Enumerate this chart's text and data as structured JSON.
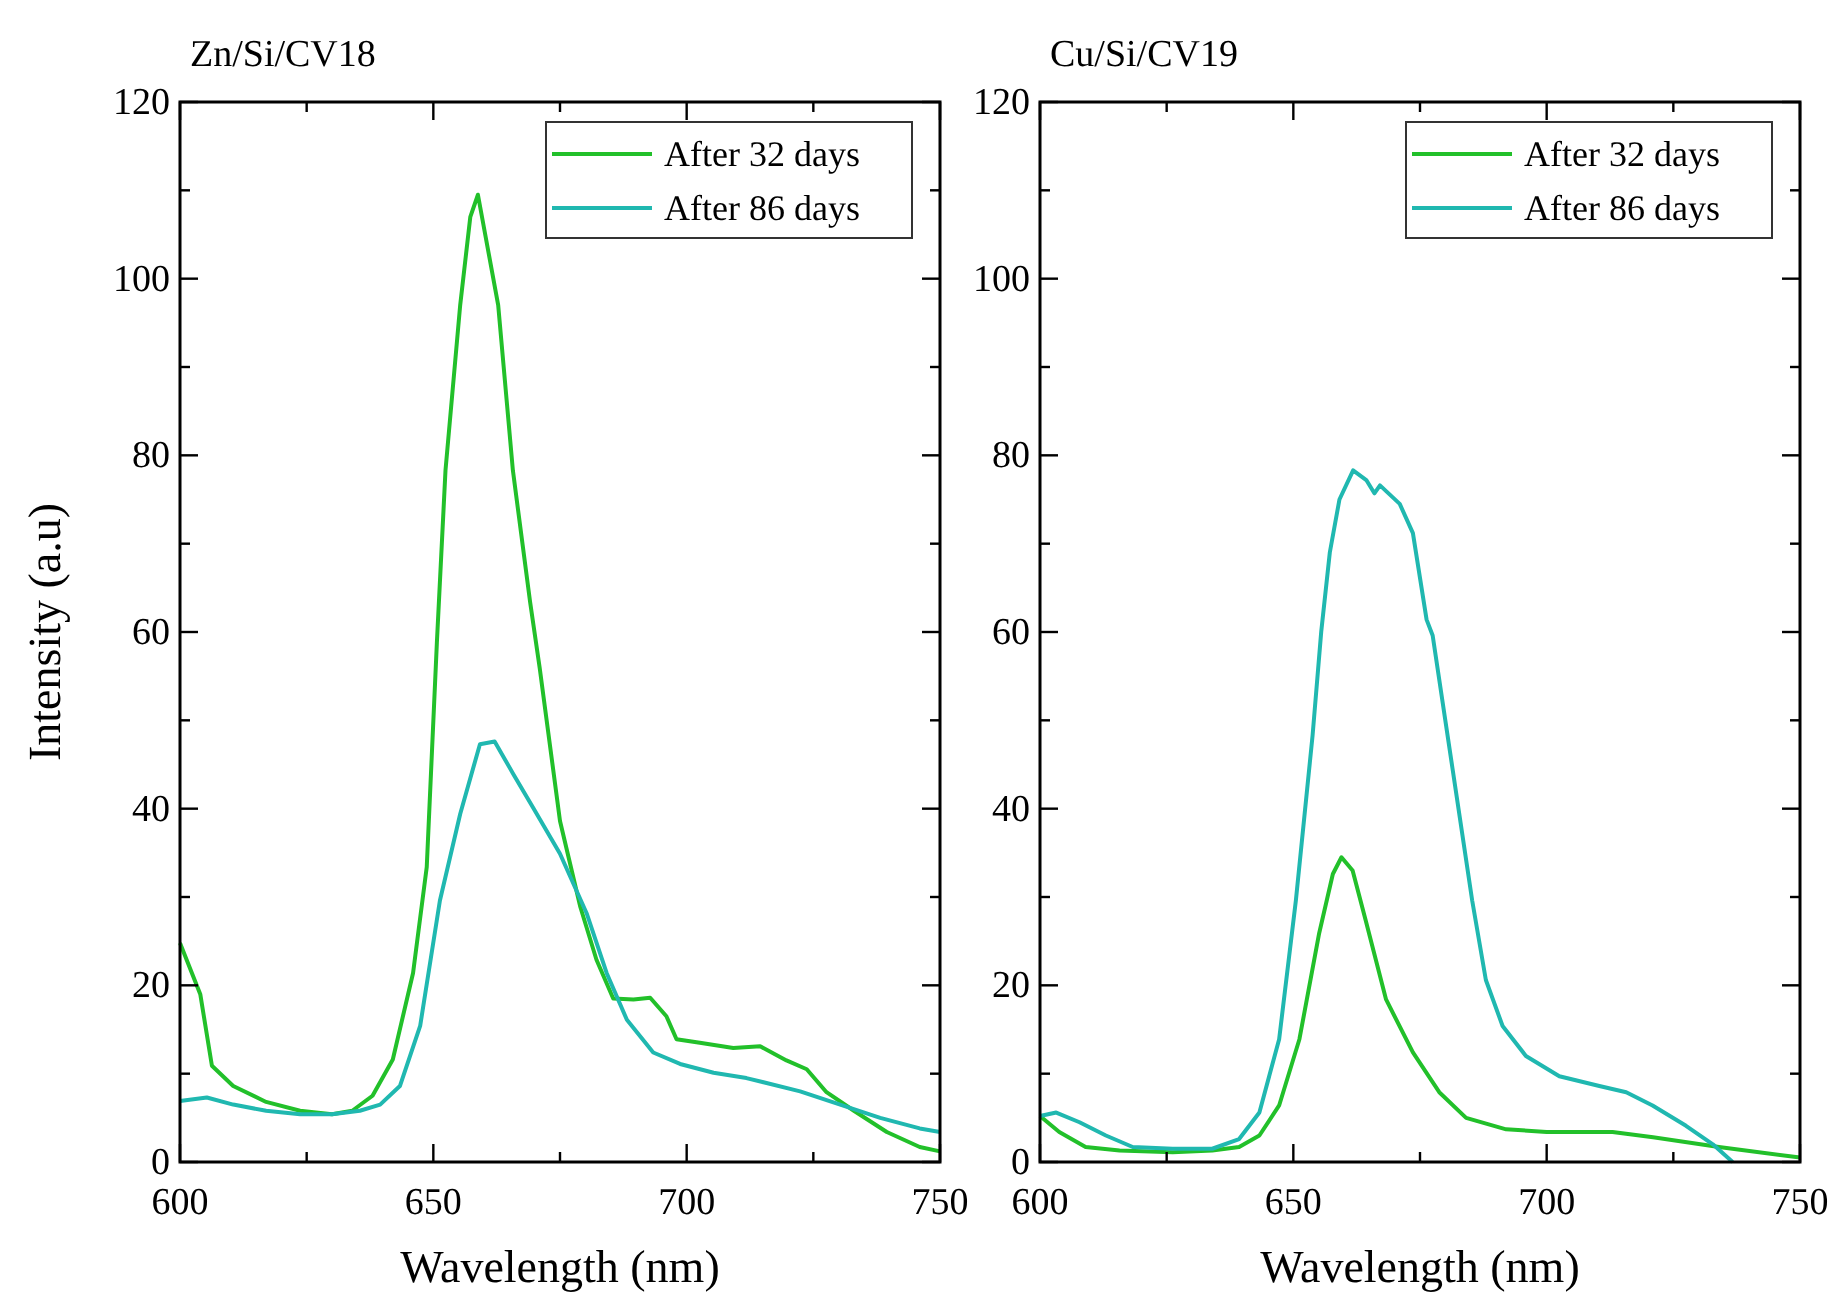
{
  "chart_data": [
    {
      "type": "line",
      "title": "Zn/Si/CV18",
      "xlabel": "Wavelength (nm)",
      "ylabel": "Intensity (a.u)",
      "xlim": [
        600,
        750
      ],
      "ylim": [
        0,
        120
      ],
      "xticks": [
        600,
        {
          "value": 625,
          "label": null
        },
        650,
        {
          "value": 675,
          "label": null
        },
        700,
        {
          "value": 725,
          "label": null
        },
        750
      ],
      "yticks": [
        0,
        {
          "value": 10,
          "label": null
        },
        20,
        {
          "value": 30,
          "label": null
        },
        40,
        {
          "value": 50,
          "label": null
        },
        60,
        {
          "value": 70,
          "label": null
        },
        80,
        {
          "value": 90,
          "label": null
        },
        100,
        {
          "value": 110,
          "label": null
        },
        120
      ],
      "grid": false,
      "legend": "top right",
      "marker": "none",
      "line_style": "solid",
      "series": [
        {
          "name": "After 32 days",
          "color": "#22c02a",
          "x": [
            600,
            604,
            606.3,
            610.5,
            617,
            623.7,
            630,
            634,
            638,
            642,
            646,
            648.7,
            650.7,
            652.4,
            655.3,
            657.3,
            658.8,
            662.8,
            665.7,
            669.1,
            671,
            675,
            679,
            682.2,
            685.5,
            689.5,
            692.8,
            696,
            698,
            702.6,
            709.2,
            714.5,
            719.7,
            723.7,
            727.6,
            733,
            739.5,
            746,
            750
          ],
          "values": [
            24.8,
            19,
            10.9,
            8.6,
            6.8,
            5.8,
            5.4,
            5.8,
            7.5,
            11.6,
            21.4,
            33.4,
            58.8,
            78.3,
            97,
            107,
            109.5,
            97,
            78.3,
            63.4,
            55.9,
            38.6,
            28.9,
            22.9,
            18.5,
            18.4,
            18.6,
            16.5,
            13.9,
            13.5,
            12.9,
            13.1,
            11.5,
            10.5,
            7.9,
            5.8,
            3.4,
            1.7,
            1.2
          ]
        },
        {
          "name": "After 86 days",
          "color": "#20b8b0",
          "x": [
            600,
            605.3,
            610.5,
            617,
            623.7,
            630,
            635.5,
            639.5,
            643.4,
            647.4,
            651.3,
            655.3,
            659.2,
            662.1,
            665.8,
            669.7,
            675,
            680.3,
            684.2,
            688.2,
            693.4,
            698.7,
            705.3,
            711.8,
            722.4,
            730.3,
            738.2,
            746,
            750
          ],
          "values": [
            6.9,
            7.3,
            6.5,
            5.8,
            5.4,
            5.4,
            5.8,
            6.5,
            8.6,
            15.4,
            29.6,
            39.4,
            47.3,
            47.6,
            43.9,
            40.1,
            34.9,
            28.1,
            21.4,
            16.1,
            12.4,
            11.1,
            10.1,
            9.5,
            8,
            6.5,
            5,
            3.8,
            3.4
          ]
        }
      ]
    },
    {
      "type": "line",
      "title": "Cu/Si/CV19",
      "xlabel": "Wavelength (nm)",
      "xlim": [
        600,
        750
      ],
      "ylim": [
        0,
        120
      ],
      "xticks": [
        600,
        {
          "value": 625,
          "label": null
        },
        650,
        {
          "value": 675,
          "label": null
        },
        700,
        {
          "value": 725,
          "label": null
        },
        750
      ],
      "yticks": [
        0,
        {
          "value": 10,
          "label": null
        },
        20,
        {
          "value": 30,
          "label": null
        },
        40,
        {
          "value": 50,
          "label": null
        },
        60,
        {
          "value": 70,
          "label": null
        },
        80,
        {
          "value": 90,
          "label": null
        },
        100,
        {
          "value": 110,
          "label": null
        },
        120
      ],
      "grid": false,
      "legend": "top right",
      "marker": "none",
      "line_style": "solid",
      "series": [
        {
          "name": "After 32 days",
          "color": "#22c02a",
          "x": [
            600,
            603.8,
            609,
            615.7,
            626.2,
            634,
            639.3,
            643.3,
            647.2,
            651.2,
            655.1,
            657.8,
            659.5,
            661.7,
            664.3,
            668.3,
            673.6,
            678.8,
            684.1,
            692,
            700,
            713,
            721,
            734,
            750
          ],
          "values": [
            5.2,
            3.4,
            1.7,
            1.3,
            1.1,
            1.3,
            1.7,
            3,
            6.4,
            13.9,
            25.9,
            32.6,
            34.5,
            33,
            27.3,
            18.4,
            12.4,
            7.9,
            5,
            3.7,
            3.4,
            3.4,
            2.8,
            1.7,
            0.5
          ]
        },
        {
          "name": "After 86 days",
          "color": "#20b8b0",
          "x": [
            600,
            603.2,
            607.8,
            613,
            618.3,
            626.2,
            634,
            639.3,
            643.3,
            647.2,
            650.5,
            653.8,
            655.5,
            657.2,
            659.1,
            661.8,
            664.4,
            666,
            667.1,
            671,
            673.6,
            676.3,
            677.5,
            681.4,
            685.3,
            688,
            691.3,
            695.9,
            702.5,
            710.4,
            715.7,
            720.9,
            727.5,
            732.8,
            736.7
          ],
          "values": [
            5.2,
            5.6,
            4.5,
            3,
            1.7,
            1.5,
            1.5,
            2.6,
            5.6,
            13.9,
            29.6,
            48.3,
            60,
            69,
            75,
            78.3,
            77.2,
            75.7,
            76.6,
            74.5,
            71.2,
            61.4,
            59.6,
            44.6,
            29.6,
            20.6,
            15.4,
            12,
            9.7,
            8.6,
            7.9,
            6.4,
            4.1,
            2,
            0
          ]
        }
      ]
    }
  ]
}
